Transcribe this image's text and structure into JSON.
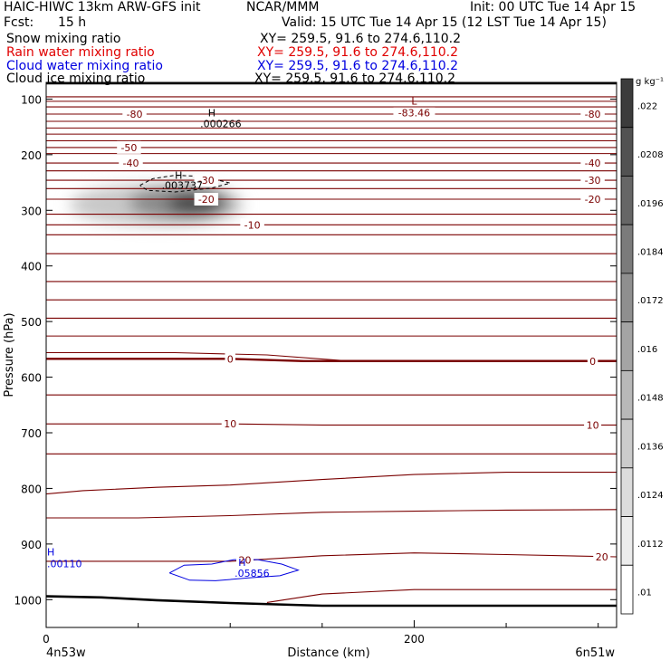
{
  "header": {
    "model": "HAIC-HIWC 13km ARW-GFS init",
    "org": "NCAR/MMM",
    "init": "Init: 00 UTC Tue 14 Apr 15",
    "fcst_label": "Fcst:",
    "fcst_value": "15 h",
    "valid": "Valid: 15 UTC Tue 14 Apr 15 (12 LST Tue 14 Apr 15)"
  },
  "fields": [
    {
      "name": "Snow mixing ratio",
      "xy": "XY= 259.5, 91.6 to 274.6,110.2",
      "color": "#000000"
    },
    {
      "name": "Rain water mixing ratio",
      "xy": "XY= 259.5, 91.6 to 274.6,110.2",
      "color": "#e00000"
    },
    {
      "name": "Cloud water mixing ratio",
      "xy": "XY= 259.5, 91.6 to 274.6,110.2",
      "color": "#0000e0"
    },
    {
      "name": "Cloud ice mixing ratio",
      "xy": "XY= 259.5, 91.6 to 274.6,110.2",
      "color": "#000000"
    }
  ],
  "chart_data": {
    "type": "contour cross-section",
    "xlabel": "Distance (km)",
    "ylabel": "Pressure (hPa)",
    "xlim": [
      0,
      310
    ],
    "ylim": [
      1050,
      70
    ],
    "x_ticks": [
      {
        "value": 0,
        "label": "0"
      },
      {
        "value": 200,
        "label": "200"
      }
    ],
    "x_minor_ticks": [
      50,
      100,
      150,
      250,
      300
    ],
    "y_ticks": [
      100,
      200,
      300,
      400,
      500,
      600,
      700,
      800,
      900,
      1000
    ],
    "endpoint_labels": {
      "left": "4n53w",
      "right": "6n51w"
    },
    "colorbar": {
      "unit": "g kg⁻¹",
      "levels": [
        ".022",
        ".0208",
        ".0196",
        ".0184",
        ".0172",
        ".016",
        ".0148",
        ".0136",
        ".0124",
        ".0112",
        ".01"
      ],
      "colors": [
        "#3c3c3c",
        "#525252",
        "#666666",
        "#7b7b7b",
        "#8f8f8f",
        "#a4a4a4",
        "#b8b8b8",
        "#cbcbcb",
        "#dcdcdc",
        "#ececec",
        "#ffffff"
      ]
    },
    "temperature_contours": [
      {
        "value": -80,
        "label": "-80",
        "points": [
          [
            0,
            127
          ],
          [
            310,
            127
          ]
        ]
      },
      {
        "value": -50,
        "label": "-50",
        "points": [
          [
            0,
            187
          ],
          [
            310,
            187
          ]
        ]
      },
      {
        "value": -40,
        "label": "-40",
        "points": [
          [
            0,
            215
          ],
          [
            310,
            215
          ]
        ]
      },
      {
        "value": -30,
        "label": "-30",
        "points": [
          [
            0,
            246
          ],
          [
            310,
            246
          ]
        ]
      },
      {
        "value": -20,
        "label": "-20",
        "points": [
          [
            0,
            280
          ],
          [
            310,
            280
          ]
        ]
      },
      {
        "value": -10,
        "label": "-10",
        "points": [
          [
            0,
            326
          ],
          [
            310,
            326
          ]
        ]
      },
      {
        "value": 0,
        "label": "0",
        "points": [
          [
            0,
            567
          ],
          [
            100,
            567
          ],
          [
            140,
            571
          ],
          [
            310,
            571
          ]
        ]
      },
      {
        "value": 10,
        "label": "10",
        "points": [
          [
            0,
            684
          ],
          [
            100,
            684
          ],
          [
            150,
            686
          ],
          [
            310,
            686
          ]
        ]
      },
      {
        "value": 20,
        "label": "20",
        "points": [
          [
            0,
            931
          ],
          [
            100,
            931
          ],
          [
            150,
            921
          ],
          [
            200,
            916
          ],
          [
            250,
            919
          ],
          [
            310,
            923
          ]
        ]
      }
    ],
    "unlabeled_contour_pressures": [
      96,
      104,
      114,
      140,
      152,
      163,
      175,
      198,
      229,
      261,
      307,
      344,
      378,
      428,
      461,
      494,
      526,
      632,
      738
    ],
    "curved_contours": [
      [
        [
          0,
          556
        ],
        [
          70,
          556
        ],
        [
          120,
          560
        ],
        [
          160,
          570
        ],
        [
          200,
          570
        ],
        [
          310,
          570
        ]
      ],
      [
        [
          0,
          810
        ],
        [
          20,
          804
        ],
        [
          60,
          798
        ],
        [
          100,
          794
        ],
        [
          150,
          784
        ],
        [
          200,
          775
        ],
        [
          250,
          771
        ],
        [
          310,
          771
        ]
      ],
      [
        [
          0,
          853
        ],
        [
          50,
          853
        ],
        [
          100,
          849
        ],
        [
          150,
          843
        ],
        [
          200,
          841
        ],
        [
          250,
          839
        ],
        [
          310,
          838
        ]
      ],
      [
        [
          120,
          1005
        ],
        [
          150,
          990
        ],
        [
          200,
          982
        ],
        [
          250,
          982
        ],
        [
          310,
          982
        ]
      ]
    ],
    "terrain": [
      [
        0,
        994
      ],
      [
        30,
        996
      ],
      [
        60,
        1001
      ],
      [
        100,
        1006
      ],
      [
        150,
        1011
      ],
      [
        200,
        1011
      ],
      [
        250,
        1011
      ],
      [
        310,
        1011
      ]
    ],
    "temperature_extrema": [
      {
        "type": "L",
        "label": "L",
        "value": "-83.46",
        "x": 200,
        "y": 110
      }
    ],
    "snow_shading": {
      "center": [
        60,
        290
      ],
      "spread_km": 38,
      "spread_hpa": 35,
      "max": 0.022
    },
    "cloud_ice": {
      "max_label": "H",
      "max_value": ".003737",
      "max_at": [
        72,
        250
      ],
      "contour": [
        [
          51,
          255
        ],
        [
          58,
          243
        ],
        [
          70,
          237
        ],
        [
          85,
          239
        ],
        [
          100,
          251
        ],
        [
          90,
          260
        ],
        [
          70,
          267
        ],
        [
          55,
          264
        ],
        [
          51,
          255
        ]
      ]
    },
    "snow_max": {
      "label": "H",
      "value": ".000266",
      "x": 90,
      "y": 131
    },
    "cloud_water": {
      "max_label": "H",
      "max_value": ".05856",
      "max_at": [
        105,
        952
      ],
      "contour": [
        [
          67,
          952
        ],
        [
          75,
          938
        ],
        [
          90,
          936
        ],
        [
          102,
          928
        ],
        [
          115,
          928
        ],
        [
          128,
          936
        ],
        [
          137,
          947
        ],
        [
          127,
          957
        ],
        [
          110,
          961
        ],
        [
          92,
          966
        ],
        [
          78,
          965
        ],
        [
          67,
          952
        ]
      ]
    },
    "rain_max": {
      "label": "H",
      "value": ".00110",
      "x": 0,
      "y": 927
    }
  }
}
